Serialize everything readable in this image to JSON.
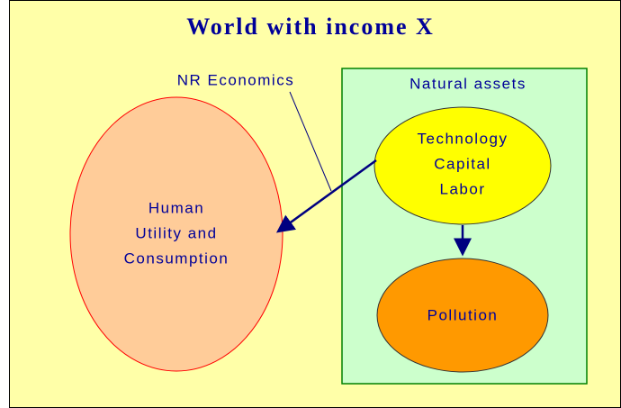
{
  "title": "World with income X",
  "annotation": "NR Economics",
  "natural_assets": {
    "label": "Natural assets"
  },
  "nodes": [
    {
      "lines": [
        "Human",
        "Utility and",
        "Consumption"
      ]
    },
    {
      "lines": [
        "Technology",
        "Capital",
        "Labor"
      ]
    },
    {
      "lines": [
        "Pollution"
      ]
    }
  ]
}
